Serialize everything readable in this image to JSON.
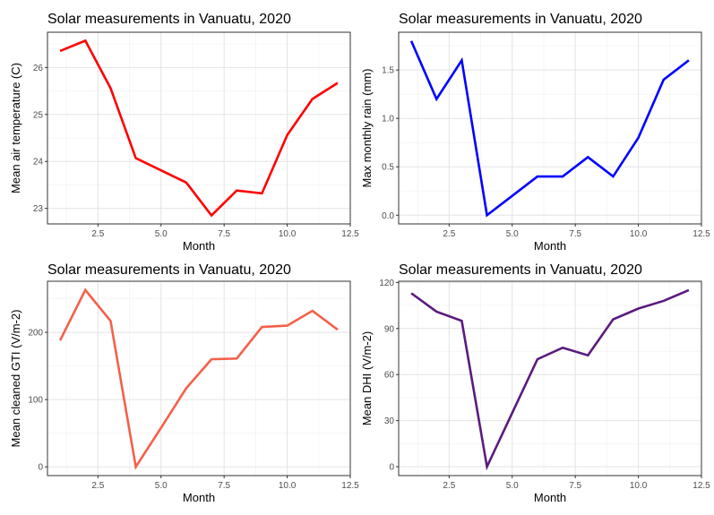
{
  "chart_data": [
    {
      "type": "line",
      "title": "Solar measurements in Vanuatu, 2020",
      "xlabel": "Month",
      "ylabel": "Mean air temperature (C)",
      "x": [
        1,
        2,
        3,
        4,
        5,
        6,
        7,
        8,
        9,
        10,
        11,
        12
      ],
      "series": [
        {
          "values": [
            26.35,
            26.57,
            25.56,
            24.07,
            23.81,
            23.55,
            22.85,
            23.38,
            23.32,
            24.56,
            25.33,
            25.67
          ]
        }
      ],
      "color": "#ff0000",
      "xlim": [
        0.5,
        12.5
      ],
      "ylim": [
        22.67,
        26.75
      ],
      "xticks": [
        2.5,
        5.0,
        7.5,
        10.0,
        12.5
      ],
      "xtick_labels": [
        "2.5",
        "5.0",
        "7.5",
        "10.0",
        "12.5"
      ],
      "yticks": [
        23,
        24,
        25,
        26
      ],
      "ytick_labels": [
        "23",
        "24",
        "25",
        "26"
      ],
      "grid": true
    },
    {
      "type": "line",
      "title": "Solar measurements in Vanuatu, 2020",
      "xlabel": "Month",
      "ylabel": "Max monthly rain (mm)",
      "x": [
        1,
        2,
        3,
        4,
        5,
        6,
        7,
        8,
        9,
        10,
        11,
        12
      ],
      "series": [
        {
          "values": [
            1.8,
            1.2,
            1.6,
            0.0,
            0.2,
            0.4,
            0.4,
            0.6,
            0.4,
            0.8,
            1.4,
            1.6
          ]
        }
      ],
      "color": "#0000ff",
      "xlim": [
        0.5,
        12.5
      ],
      "ylim": [
        -0.09,
        1.89
      ],
      "xticks": [
        2.5,
        5.0,
        7.5,
        10.0,
        12.5
      ],
      "xtick_labels": [
        "2.5",
        "5.0",
        "7.5",
        "10.0",
        "12.5"
      ],
      "yticks": [
        0.0,
        0.5,
        1.0,
        1.5
      ],
      "ytick_labels": [
        "0.0",
        "0.5",
        "1.0",
        "1.5"
      ],
      "grid": true
    },
    {
      "type": "line",
      "title": "Solar measurements in Vanuatu, 2020",
      "xlabel": "Month",
      "ylabel": "Mean cleaned GTI (V/m-2)",
      "x": [
        1,
        2,
        3,
        4,
        5,
        6,
        7,
        8,
        9,
        10,
        11,
        12
      ],
      "series": [
        {
          "values": [
            188,
            263,
            217,
            0,
            58,
            117,
            160,
            161,
            208,
            210,
            232,
            204
          ]
        }
      ],
      "color": "#f4604a",
      "xlim": [
        0.5,
        12.5
      ],
      "ylim": [
        -13,
        276
      ],
      "xticks": [
        2.5,
        5.0,
        7.5,
        10.0,
        12.5
      ],
      "xtick_labels": [
        "2.5",
        "5.0",
        "7.5",
        "10.0",
        "12.5"
      ],
      "yticks": [
        0,
        100,
        200
      ],
      "ytick_labels": [
        "0",
        "100",
        "200"
      ],
      "grid": true
    },
    {
      "type": "line",
      "title": "Solar measurements in Vanuatu, 2020",
      "xlabel": "Month",
      "ylabel": "Mean DHI (V/m-2)",
      "x": [
        1,
        2,
        3,
        4,
        5,
        6,
        7,
        8,
        9,
        10,
        11,
        12
      ],
      "series": [
        {
          "values": [
            113,
            101,
            95,
            0,
            35,
            70,
            77.5,
            72.5,
            96,
            103,
            108,
            115
          ]
        }
      ],
      "color": "#5b1a7e",
      "xlim": [
        0.5,
        12.5
      ],
      "ylim": [
        -5.8,
        120.8
      ],
      "xticks": [
        2.5,
        5.0,
        7.5,
        10.0,
        12.5
      ],
      "xtick_labels": [
        "2.5",
        "5.0",
        "7.5",
        "10.0",
        "12.5"
      ],
      "yticks": [
        0,
        30,
        60,
        90,
        120
      ],
      "ytick_labels": [
        "0",
        "30",
        "60",
        "90",
        "120"
      ],
      "grid": true
    }
  ]
}
